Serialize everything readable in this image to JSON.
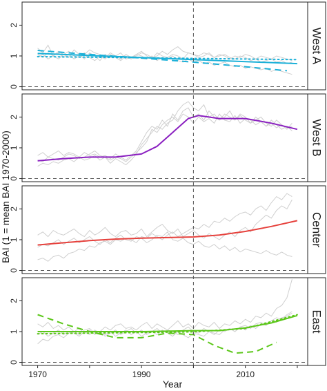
{
  "chart_data": {
    "type": "line",
    "xlabel": "Year",
    "ylabel": "BAI (1 = mean BAI 1970-2000)",
    "xlim": [
      1967,
      2022
    ],
    "x_ticks": [
      1970,
      1990,
      2010
    ],
    "ylim": [
      -0.1,
      2.75
    ],
    "y_ticks": [
      0,
      1,
      2
    ],
    "reference_lines": {
      "vertical_x": 2000,
      "horizontal_y": 0
    },
    "grid": false,
    "panels": [
      {
        "label": "West A",
        "color": "#1bb0d8",
        "fits": [
          {
            "style": "solid",
            "x": [
              1970,
              2020
            ],
            "y": [
              1.08,
              0.75
            ]
          },
          {
            "style": "dashed",
            "x": [
              1970,
              1980,
              1990,
              2000,
              2010,
              2018
            ],
            "y": [
              1.18,
              1.05,
              0.93,
              0.8,
              0.65,
              0.52
            ]
          },
          {
            "style": "dotted",
            "x": [
              1970,
              2020
            ],
            "y": [
              0.98,
              0.88
            ]
          }
        ],
        "site_series": [
          {
            "x0": 1970,
            "y": [
              1.25,
              1.1,
              1.35,
              1.0,
              1.15,
              1.05,
              0.95,
              1.2,
              1.05,
              0.9,
              1.1,
              1.0,
              0.85,
              1.05,
              0.95,
              1.0,
              1.1,
              0.9,
              0.95,
              1.05,
              1.0,
              0.9,
              1.0,
              0.85,
              0.95,
              0.9,
              1.0,
              0.85,
              0.8,
              0.9,
              0.8,
              0.85,
              0.75,
              0.8,
              0.7,
              0.75,
              0.8,
              0.7,
              0.65,
              0.7,
              0.6,
              0.65,
              0.6,
              0.55,
              0.6,
              0.5,
              0.55,
              0.5,
              0.45,
              0.4
            ]
          },
          {
            "x0": 1970,
            "y": [
              0.95,
              1.05,
              0.9,
              1.0,
              1.1,
              0.95,
              1.05,
              0.9,
              1.0,
              1.1,
              0.95,
              0.85,
              1.0,
              0.9,
              1.05,
              0.95,
              0.85,
              1.0,
              0.9,
              1.05,
              1.15,
              1.0,
              0.9,
              1.1,
              1.0,
              0.95,
              1.05,
              1.0,
              0.9,
              1.1,
              1.05,
              0.95,
              1.0,
              1.1,
              0.95,
              1.05,
              1.0,
              0.9,
              1.0,
              0.95,
              1.05,
              1.0,
              0.9,
              1.0,
              0.95,
              0.9,
              1.0,
              0.95,
              0.9,
              0.85
            ]
          },
          {
            "x0": 1970,
            "y": [
              1.05,
              0.95,
              1.1,
              1.0,
              0.9,
              1.05,
              1.15,
              1.0,
              0.95,
              1.05,
              1.2,
              1.1,
              1.05,
              0.95,
              1.1,
              1.0,
              0.9,
              1.05,
              0.95,
              1.0,
              1.1,
              1.05,
              0.95,
              1.0,
              1.15,
              1.05,
              1.2,
              1.3,
              1.15,
              1.1,
              1.05,
              1.0,
              1.1,
              1.05,
              0.95,
              1.0,
              1.05,
              0.95,
              0.9,
              1.0,
              0.95,
              0.85,
              0.9,
              0.8,
              0.85,
              0.9,
              0.8,
              0.85,
              0.75,
              0.8
            ]
          }
        ]
      },
      {
        "label": "West B",
        "color": "#8a1fc0",
        "fits": [
          {
            "style": "solid",
            "x": [
              1970,
              1975,
              1980,
              1985,
              1990,
              1993,
              1996,
              1999,
              2001,
              2005,
              2010,
              2015,
              2020
            ],
            "y": [
              0.58,
              0.65,
              0.7,
              0.7,
              0.8,
              1.05,
              1.5,
              1.95,
              2.05,
              1.95,
              1.95,
              1.8,
              1.6
            ]
          }
        ],
        "site_series": [
          {
            "x0": 1970,
            "y": [
              0.75,
              0.85,
              0.7,
              0.8,
              0.9,
              0.75,
              0.85,
              0.8,
              0.7,
              0.85,
              0.75,
              0.8,
              0.7,
              0.75,
              0.65,
              0.8,
              0.7,
              0.6,
              0.75,
              0.9,
              1.2,
              1.5,
              1.7,
              1.6,
              1.9,
              1.7,
              2.1,
              1.9,
              2.2,
              2.3,
              2.0,
              2.1,
              1.9,
              2.2,
              2.0,
              1.9,
              2.1,
              2.0,
              1.9,
              2.05,
              1.9,
              1.8,
              2.0,
              1.85,
              1.7,
              1.9,
              1.75,
              1.6,
              1.7,
              1.55
            ]
          },
          {
            "x0": 1970,
            "y": [
              0.4,
              0.5,
              0.45,
              0.55,
              0.5,
              0.6,
              0.65,
              0.55,
              0.7,
              0.6,
              0.65,
              0.75,
              0.6,
              0.7,
              0.5,
              0.65,
              0.55,
              0.45,
              0.6,
              0.8,
              1.1,
              1.3,
              1.5,
              1.7,
              1.6,
              1.8,
              1.9,
              2.2,
              2.4,
              2.5,
              2.3,
              2.2,
              2.4,
              2.0,
              2.1,
              1.9,
              2.0,
              2.2,
              1.9,
              2.1,
              2.0,
              1.8,
              1.9,
              2.0,
              1.8,
              1.7,
              1.9,
              1.75,
              1.65,
              1.7
            ]
          },
          {
            "x0": 1970,
            "y": [
              0.6,
              0.55,
              0.7,
              0.65,
              0.6,
              0.7,
              0.8,
              0.75,
              0.65,
              0.7,
              0.8,
              0.9,
              0.75,
              0.7,
              0.6,
              0.7,
              0.65,
              0.55,
              0.7,
              0.85,
              1.0,
              1.2,
              1.6,
              1.5,
              1.75,
              1.9,
              2.0,
              1.85,
              2.1,
              2.0,
              1.8,
              2.0,
              1.85,
              1.95,
              1.8,
              2.1,
              1.9,
              1.85,
              2.05,
              1.8,
              1.95,
              1.9,
              1.75,
              1.85,
              1.7,
              1.8,
              1.65,
              1.75,
              1.6,
              1.8
            ]
          }
        ]
      },
      {
        "label": "Center",
        "color": "#e6413c",
        "fits": [
          {
            "style": "solid",
            "x": [
              1970,
              1975,
              1980,
              1985,
              1990,
              1995,
              2000,
              2005,
              2010,
              2015,
              2020
            ],
            "y": [
              0.83,
              0.9,
              0.97,
              1.02,
              1.05,
              1.07,
              1.09,
              1.15,
              1.27,
              1.43,
              1.62
            ]
          }
        ],
        "site_series": [
          {
            "x0": 1970,
            "y": [
              0.35,
              0.4,
              0.3,
              0.45,
              0.5,
              0.4,
              0.55,
              0.6,
              0.7,
              0.65,
              0.8,
              0.75,
              0.9,
              0.95,
              0.85,
              1.0,
              0.95,
              1.05,
              1.0,
              0.9,
              1.1,
              1.05,
              1.2,
              1.1,
              1.0,
              1.15,
              1.25,
              1.1,
              1.2,
              1.3,
              1.4,
              1.35,
              1.5,
              1.4,
              1.6,
              1.55,
              1.7,
              1.6,
              1.75,
              1.85,
              1.9,
              1.8,
              2.0,
              2.1,
              1.95,
              2.2,
              2.4,
              2.3,
              2.5,
              2.4
            ]
          },
          {
            "x0": 1970,
            "y": [
              1.15,
              1.25,
              1.1,
              1.3,
              1.2,
              1.15,
              1.25,
              1.35,
              1.2,
              1.1,
              1.3,
              1.15,
              1.25,
              1.4,
              1.2,
              1.1,
              1.25,
              1.3,
              1.15,
              1.2,
              1.35,
              1.1,
              1.25,
              1.4,
              1.5,
              1.3,
              1.2,
              1.35,
              1.1,
              1.2,
              1.3,
              1.15,
              1.05,
              1.2,
              1.1,
              1.0,
              1.15,
              1.25,
              1.1,
              1.3,
              1.4,
              1.25,
              1.5,
              1.65,
              1.8,
              1.7,
              1.95,
              2.1,
              2.0,
              2.3
            ]
          },
          {
            "x0": 1970,
            "y": [
              0.75,
              0.85,
              0.8,
              0.9,
              1.0,
              0.85,
              0.95,
              1.05,
              0.9,
              1.0,
              1.1,
              0.95,
              0.85,
              1.0,
              0.9,
              1.05,
              1.15,
              1.0,
              0.95,
              1.1,
              1.05,
              0.9,
              1.0,
              1.15,
              1.1,
              1.25,
              1.0,
              0.95,
              1.05,
              0.9,
              0.85,
              0.95,
              0.8,
              0.75,
              0.85,
              0.7,
              0.8,
              0.65,
              0.75,
              0.6,
              0.7,
              0.65,
              0.6,
              0.55,
              0.65,
              0.55,
              0.5,
              0.6,
              0.5,
              0.45
            ]
          }
        ]
      },
      {
        "label": "East",
        "color": "#5cc71a",
        "fits": [
          {
            "style": "solid",
            "x": [
              1970,
              1980,
              1990,
              2000,
              2005,
              2010,
              2015,
              2020
            ],
            "y": [
              1.0,
              1.0,
              1.0,
              1.03,
              1.03,
              1.12,
              1.28,
              1.52
            ]
          },
          {
            "style": "dashed",
            "x": [
              1970,
              1975,
              1980,
              1985,
              1990,
              1995,
              2000,
              2004,
              2008,
              2012,
              2016
            ],
            "y": [
              1.55,
              1.25,
              1.0,
              0.8,
              0.8,
              0.95,
              0.9,
              0.55,
              0.3,
              0.35,
              0.65
            ]
          },
          {
            "style": "dotted",
            "x": [
              1970,
              1980,
              1990,
              2000,
              2010,
              2020
            ],
            "y": [
              0.93,
              0.95,
              0.97,
              0.99,
              1.1,
              1.55
            ]
          }
        ],
        "site_series": [
          {
            "x0": 1970,
            "y": [
              0.6,
              0.75,
              0.7,
              0.85,
              0.9,
              0.8,
              0.95,
              1.0,
              0.9,
              1.05,
              1.1,
              0.95,
              1.0,
              1.15,
              1.05,
              1.2,
              1.25,
              1.1,
              1.15,
              1.05,
              1.2,
              1.3,
              1.1,
              1.25,
              1.15,
              1.05,
              1.2,
              1.35,
              1.15,
              1.25,
              1.1,
              1.3,
              1.2,
              1.15,
              1.3,
              1.1,
              1.25,
              1.2,
              1.35,
              1.25,
              1.4,
              1.3,
              1.5,
              1.45,
              1.6,
              1.5,
              1.75,
              1.85,
              2.1,
              2.7
            ]
          },
          {
            "x0": 1970,
            "y": [
              1.25,
              1.15,
              1.3,
              1.1,
              1.2,
              1.05,
              1.15,
              1.0,
              1.1,
              0.95,
              1.05,
              0.9,
              1.0,
              0.85,
              0.95,
              1.05,
              0.9,
              1.0,
              1.1,
              0.95,
              1.05,
              0.9,
              1.0,
              1.1,
              0.95,
              1.05,
              1.0,
              0.9,
              1.05,
              1.15,
              1.0,
              0.95,
              1.1,
              1.0,
              0.9,
              1.05,
              1.0,
              1.1,
              1.0,
              1.15,
              1.05,
              1.2,
              1.1,
              1.25,
              1.2,
              1.35,
              1.3,
              1.45,
              1.5,
              1.6
            ]
          },
          {
            "x0": 1970,
            "y": [
              0.9,
              1.0,
              0.85,
              0.95,
              1.05,
              0.9,
              1.0,
              0.95,
              0.85,
              1.0,
              0.9,
              1.05,
              0.95,
              0.9,
              1.0,
              0.85,
              0.95,
              1.05,
              0.9,
              1.0,
              0.85,
              0.95,
              1.0,
              0.9,
              1.05,
              0.95,
              0.85,
              1.0,
              0.9,
              0.8,
              0.95,
              0.9,
              0.85,
              1.0,
              0.95,
              0.9,
              1.05,
              1.1,
              1.0,
              1.15,
              1.2,
              1.1,
              1.25,
              1.3,
              1.2,
              1.35,
              1.45,
              1.4,
              1.55,
              1.65
            ]
          }
        ]
      }
    ]
  }
}
